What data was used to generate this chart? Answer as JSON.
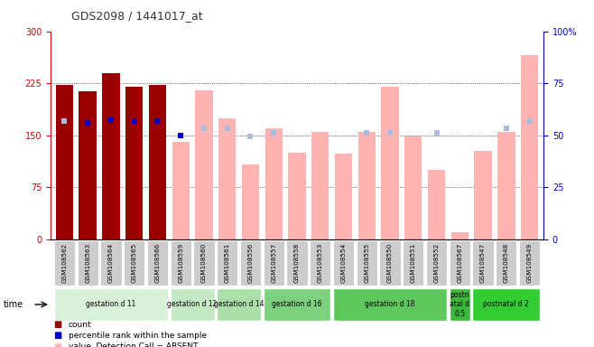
{
  "title": "GDS2098 / 1441017_at",
  "samples": [
    "GSM108562",
    "GSM108563",
    "GSM108564",
    "GSM108565",
    "GSM108566",
    "GSM108559",
    "GSM108560",
    "GSM108561",
    "GSM108556",
    "GSM108557",
    "GSM108558",
    "GSM108553",
    "GSM108554",
    "GSM108555",
    "GSM108550",
    "GSM108551",
    "GSM108552",
    "GSM108567",
    "GSM108547",
    "GSM108548",
    "GSM108549"
  ],
  "present": [
    true,
    true,
    true,
    true,
    true,
    false,
    false,
    false,
    false,
    false,
    false,
    false,
    false,
    false,
    false,
    false,
    false,
    false,
    false,
    false,
    false
  ],
  "values": [
    222,
    213,
    240,
    220,
    222,
    140,
    215,
    175,
    108,
    160,
    125,
    155,
    123,
    155,
    220,
    148,
    100,
    10,
    128,
    155,
    265
  ],
  "ranks_val": [
    170,
    168,
    172,
    170,
    170,
    150,
    160,
    160,
    148,
    153,
    null,
    null,
    null,
    153,
    153,
    null,
    153,
    null,
    null,
    160,
    170
  ],
  "rank_is_present": [
    false,
    true,
    true,
    true,
    true,
    true,
    false,
    false,
    false,
    false,
    false,
    false,
    false,
    false,
    false,
    false,
    false,
    false,
    false,
    false,
    false
  ],
  "group_defs": [
    {
      "label": "gestation d 11",
      "start": 0,
      "end": 4,
      "color": "#d9f0d9"
    },
    {
      "label": "gestation d 12",
      "start": 5,
      "end": 6,
      "color": "#c5e8c5"
    },
    {
      "label": "gestation d 14",
      "start": 7,
      "end": 8,
      "color": "#aadfaa"
    },
    {
      "label": "gestation d 16",
      "start": 9,
      "end": 11,
      "color": "#7dd07d"
    },
    {
      "label": "gestation d 18",
      "start": 12,
      "end": 16,
      "color": "#5ec85e"
    },
    {
      "label": "postn\natal d\n0.5",
      "start": 17,
      "end": 17,
      "color": "#3db83d"
    },
    {
      "label": "postnatal d 2",
      "start": 18,
      "end": 20,
      "color": "#33cc33"
    }
  ],
  "ylim_left": [
    0,
    300
  ],
  "ylim_right": [
    0,
    100
  ],
  "yticks_left": [
    0,
    75,
    150,
    225,
    300
  ],
  "yticks_right": [
    0,
    25,
    50,
    75,
    100
  ],
  "bar_color_present": "#9b0000",
  "bar_color_absent": "#ffb3b3",
  "rank_color_present": "#0000cc",
  "rank_color_absent": "#aabbdd"
}
